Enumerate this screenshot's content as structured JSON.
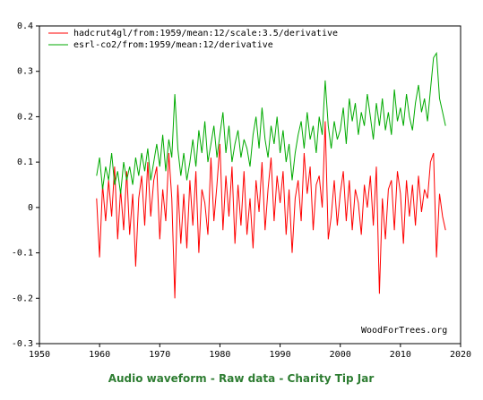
{
  "chart_data": {
    "type": "line",
    "legend_position": "top-left",
    "annotation": "WoodForTrees.org",
    "xlim": [
      1950,
      2020
    ],
    "xticks": [
      1950,
      1960,
      1970,
      1980,
      1990,
      2000,
      2010,
      2020
    ],
    "ylim": [
      -0.3,
      0.4
    ],
    "yticks": [
      -0.3,
      -0.2,
      -0.1,
      0,
      0.1,
      0.2,
      0.3,
      0.4
    ],
    "x": [
      1959.5,
      1960,
      1960.5,
      1961,
      1961.5,
      1962,
      1962.5,
      1963,
      1963.5,
      1964,
      1964.5,
      1965,
      1965.5,
      1966,
      1966.5,
      1967,
      1967.5,
      1968,
      1968.5,
      1969,
      1969.5,
      1970,
      1970.5,
      1971,
      1971.5,
      1972,
      1972.5,
      1973,
      1973.5,
      1974,
      1974.5,
      1975,
      1975.5,
      1976,
      1976.5,
      1977,
      1977.5,
      1978,
      1978.5,
      1979,
      1979.5,
      1980,
      1980.5,
      1981,
      1981.5,
      1982,
      1982.5,
      1983,
      1983.5,
      1984,
      1984.5,
      1985,
      1985.5,
      1986,
      1986.5,
      1987,
      1987.5,
      1988,
      1988.5,
      1989,
      1989.5,
      1990,
      1990.5,
      1991,
      1991.5,
      1992,
      1992.5,
      1993,
      1993.5,
      1994,
      1994.5,
      1995,
      1995.5,
      1996,
      1996.5,
      1997,
      1997.5,
      1998,
      1998.5,
      1999,
      1999.5,
      2000,
      2000.5,
      2001,
      2001.5,
      2002,
      2002.5,
      2003,
      2003.5,
      2004,
      2004.5,
      2005,
      2005.5,
      2006,
      2006.5,
      2007,
      2007.5,
      2008,
      2008.5,
      2009,
      2009.5,
      2010,
      2010.5,
      2011,
      2011.5,
      2012,
      2012.5,
      2013,
      2013.5,
      2014,
      2014.5,
      2015,
      2015.5,
      2016,
      2016.5,
      2017,
      2017.5
    ],
    "series": [
      {
        "name": "hadcrut4gl/from:1959/mean:12/scale:3.5/derivative",
        "color": "#ff0000",
        "values": [
          0.02,
          -0.11,
          0.05,
          -0.03,
          0.06,
          -0.02,
          0.09,
          -0.07,
          0.04,
          -0.05,
          0.08,
          -0.06,
          0.03,
          -0.13,
          0.02,
          0.07,
          -0.04,
          0.1,
          -0.02,
          0.06,
          0.09,
          -0.07,
          0.04,
          -0.03,
          0.12,
          0.02,
          -0.2,
          0.05,
          -0.08,
          0.03,
          -0.09,
          0.06,
          -0.04,
          0.08,
          -0.1,
          0.04,
          0.01,
          -0.06,
          0.11,
          -0.03,
          0.05,
          0.14,
          -0.05,
          0.07,
          -0.02,
          0.09,
          -0.08,
          0.05,
          -0.04,
          0.08,
          -0.06,
          0.02,
          -0.09,
          0.06,
          -0.01,
          0.1,
          -0.05,
          0.04,
          0.11,
          -0.03,
          0.07,
          0.01,
          0.08,
          -0.06,
          0.04,
          -0.1,
          0.02,
          0.06,
          -0.03,
          0.12,
          0.03,
          0.09,
          -0.05,
          0.05,
          0.07,
          0,
          0.19,
          -0.07,
          -0.02,
          0.06,
          -0.04,
          0.03,
          0.08,
          -0.03,
          0.06,
          -0.05,
          0.04,
          0.01,
          -0.06,
          0.05,
          0,
          0.07,
          -0.04,
          0.09,
          -0.19,
          0.02,
          -0.07,
          0.04,
          0.06,
          -0.05,
          0.08,
          0.03,
          -0.08,
          0.06,
          -0.02,
          0.05,
          -0.04,
          0.07,
          -0.01,
          0.04,
          0.02,
          0.1,
          0.12,
          -0.11,
          0.03,
          -0.02,
          -0.05
        ]
      },
      {
        "name": "esrl-co2/from:1959/mean:12/derivative",
        "color": "#00aa00",
        "values": [
          0.07,
          0.11,
          0.04,
          0.09,
          0.06,
          0.12,
          0.05,
          0.08,
          0.03,
          0.1,
          0.06,
          0.09,
          0.05,
          0.11,
          0.07,
          0.12,
          0.08,
          0.13,
          0.06,
          0.1,
          0.14,
          0.09,
          0.16,
          0.08,
          0.15,
          0.11,
          0.25,
          0.13,
          0.07,
          0.12,
          0.06,
          0.1,
          0.15,
          0.09,
          0.17,
          0.12,
          0.19,
          0.1,
          0.14,
          0.18,
          0.11,
          0.16,
          0.21,
          0.12,
          0.18,
          0.1,
          0.14,
          0.17,
          0.11,
          0.15,
          0.13,
          0.09,
          0.16,
          0.2,
          0.13,
          0.22,
          0.15,
          0.11,
          0.18,
          0.14,
          0.2,
          0.12,
          0.17,
          0.1,
          0.14,
          0.06,
          0.12,
          0.16,
          0.19,
          0.13,
          0.21,
          0.15,
          0.18,
          0.12,
          0.2,
          0.16,
          0.28,
          0.18,
          0.13,
          0.19,
          0.15,
          0.17,
          0.22,
          0.14,
          0.24,
          0.19,
          0.23,
          0.16,
          0.21,
          0.18,
          0.25,
          0.2,
          0.15,
          0.23,
          0.18,
          0.24,
          0.17,
          0.21,
          0.16,
          0.26,
          0.19,
          0.22,
          0.18,
          0.25,
          0.2,
          0.17,
          0.23,
          0.27,
          0.21,
          0.24,
          0.19,
          0.26,
          0.33,
          0.34,
          0.24,
          0.21,
          0.18
        ]
      }
    ]
  },
  "footer_links": [
    "Audio waveform",
    "Raw data",
    "Charity Tip Jar"
  ],
  "footer_separator": "-"
}
